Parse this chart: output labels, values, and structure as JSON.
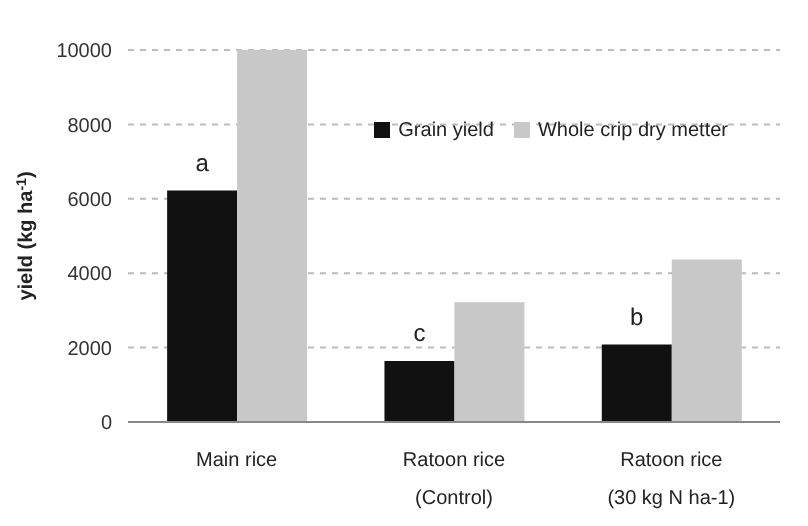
{
  "chart_data": {
    "type": "bar",
    "ylabel": "yield (kg  ha$^{-1}$)",
    "categories": [
      "Main rice",
      "Ratoon rice\n(Control)",
      "Ratoon rice\n(30 kg N ha-1)"
    ],
    "series": [
      {
        "name": "Grain yield",
        "color": "#111111",
        "values": [
          6220,
          1640,
          2080
        ]
      },
      {
        "name": "Whole crip dry metter",
        "color": "#c8c8c8",
        "values": [
          10000,
          3220,
          4370
        ]
      }
    ],
    "ylim": [
      0,
      10000
    ],
    "yticks": [
      0,
      2000,
      4000,
      6000,
      8000,
      10000
    ],
    "grid": "y",
    "legend": "top right",
    "annotations": [
      {
        "text": "a",
        "x": "Main rice",
        "y": 6220
      },
      {
        "text": "c",
        "x": "Ratoon rice\n(Control)",
        "y": 1640
      },
      {
        "text": "b",
        "x": "Ratoon rice\n(30 kg N ha-1)",
        "y": 2080
      }
    ]
  }
}
